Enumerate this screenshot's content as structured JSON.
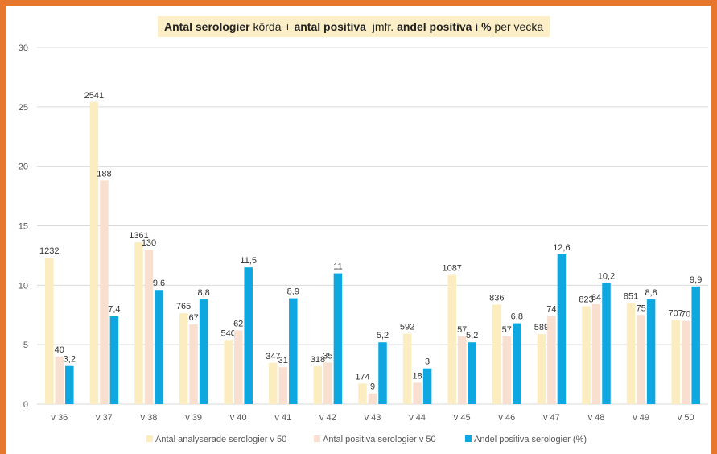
{
  "frame": {
    "border_color": "#e8772e"
  },
  "title": {
    "part1_bold": "Antal serologier",
    "part2": " körda + ",
    "part3_bold": "antal positiva",
    "part4": "  jmfr. ",
    "part5_bold": "andel positiva i %",
    "part6": " per vecka",
    "background": "#fcefc8"
  },
  "chart_data": {
    "type": "bar",
    "categories": [
      "v 36",
      "v 37",
      "v 38",
      "v 39",
      "v 40",
      "v 41",
      "v 42",
      "v 43",
      "v 44",
      "v 45",
      "v 46",
      "v 47",
      "v 48",
      "v 49",
      "v 50"
    ],
    "ylim": [
      0,
      30
    ],
    "yticks": [
      0,
      5,
      10,
      15,
      20,
      25,
      30
    ],
    "grid": true,
    "legend_position": "bottom",
    "series": [
      {
        "name": "Antal analyserade serologier v 50",
        "color": "#fcedc0",
        "values": [
          12.32,
          25.41,
          13.61,
          7.65,
          5.4,
          3.47,
          3.18,
          1.74,
          5.92,
          10.87,
          8.36,
          5.89,
          8.23,
          8.51,
          7.07
        ],
        "labels": [
          "1232",
          "2541",
          "1361",
          "765",
          "540",
          "347",
          "318",
          "174",
          "592",
          "1087",
          "836",
          "589",
          "823",
          "851",
          "707"
        ]
      },
      {
        "name": "Antal positiva serologier v 50",
        "color": "#f9dfcf",
        "values": [
          4.0,
          18.8,
          13.0,
          6.7,
          6.2,
          3.1,
          3.5,
          0.9,
          1.8,
          5.7,
          5.7,
          7.4,
          8.4,
          7.5,
          7.0
        ],
        "labels": [
          "40",
          "188",
          "130",
          "67",
          "62",
          "31",
          "35",
          "9",
          "18",
          "57",
          "57",
          "74",
          "84",
          "75",
          "70"
        ]
      },
      {
        "name": "Andel positiva serologier (%)",
        "color": "#0fa7df",
        "values": [
          3.2,
          7.4,
          9.6,
          8.8,
          11.5,
          8.9,
          11,
          5.2,
          3,
          5.2,
          6.8,
          12.6,
          10.2,
          8.8,
          9.9
        ],
        "labels": [
          "3,2",
          "7,4",
          "9,6",
          "8,8",
          "11,5",
          "8,9",
          "11",
          "5,2",
          "3",
          "5,2",
          "6,8",
          "12,6",
          "10,2",
          "8,8",
          "9,9"
        ]
      }
    ]
  }
}
